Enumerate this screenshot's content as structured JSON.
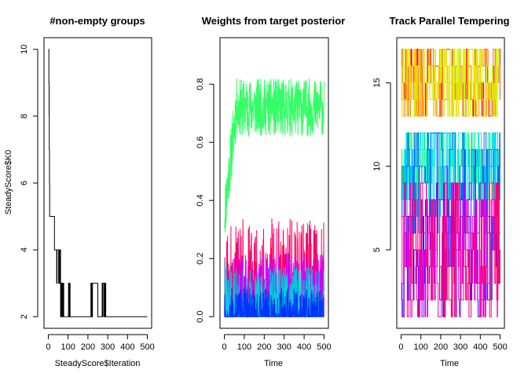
{
  "chart_data": [
    {
      "type": "line",
      "title": "#non-empty groups",
      "xlabel": "SteadyScore$Iteration",
      "ylabel": "SteadyScore$K0",
      "xlim": [
        0,
        500
      ],
      "ylim": [
        2,
        10
      ],
      "xticks": [
        0,
        100,
        200,
        300,
        400,
        500
      ],
      "yticks": [
        2,
        4,
        6,
        8,
        10
      ],
      "series": [
        {
          "color": "#000000",
          "x": [
            1,
            2,
            3,
            4,
            5,
            6,
            7,
            8,
            9,
            10,
            15,
            20,
            25,
            30,
            31,
            33,
            35,
            36,
            38,
            40,
            42,
            44,
            46,
            48,
            50,
            52,
            54,
            56,
            58,
            60,
            62,
            64,
            66,
            68,
            70,
            72,
            74,
            76,
            78,
            80,
            85,
            90,
            100,
            102,
            104,
            106,
            110,
            150,
            200,
            215,
            217,
            219,
            221,
            223,
            250,
            270,
            272,
            274,
            276,
            278,
            280,
            282,
            284,
            286,
            288,
            290,
            300,
            350,
            400,
            450,
            500
          ],
          "y": [
            10,
            10,
            9,
            8,
            7,
            6,
            5,
            5,
            5,
            5,
            5,
            5,
            5,
            5,
            4,
            4,
            4,
            4,
            4,
            4,
            3,
            4,
            4,
            4,
            4,
            3,
            4,
            3,
            4,
            4,
            2,
            3,
            2,
            3,
            2,
            3,
            2,
            3,
            2,
            2,
            2,
            2,
            2,
            3,
            2,
            3,
            2,
            2,
            2,
            3,
            2,
            3,
            2,
            3,
            2,
            2,
            3,
            2,
            3,
            3,
            3,
            2,
            3,
            2,
            3,
            2,
            2,
            2,
            2,
            2,
            2
          ]
        }
      ]
    },
    {
      "type": "line",
      "title": "Weights from target posterior",
      "xlabel": "Time",
      "ylabel": "",
      "xlim": [
        0,
        500
      ],
      "ylim": [
        0,
        0.92
      ],
      "xticks": [
        0,
        100,
        200,
        300,
        400,
        500
      ],
      "yticks": [
        0,
        0.2,
        0.4,
        0.6,
        0.8
      ],
      "ytick_labels": [
        "0.0",
        "0.2",
        "0.4",
        "0.6",
        "0.8"
      ],
      "series": [
        {
          "color": "#33ff66",
          "n": 500,
          "seed": 11,
          "base": 0.72,
          "amp": 0.1,
          "start": 0.35,
          "rise": 60
        },
        {
          "color": "#ff0066",
          "n": 500,
          "seed": 23,
          "base": 0.12,
          "amp": 0.22,
          "start": 0.1,
          "rise": 5
        },
        {
          "color": "#cc00ff",
          "n": 500,
          "seed": 37,
          "base": 0.08,
          "amp": 0.14,
          "start": 0.05,
          "rise": 5
        },
        {
          "color": "#00ccdd",
          "n": 500,
          "seed": 41,
          "base": 0.05,
          "amp": 0.12,
          "start": 0.3,
          "rise": 5
        },
        {
          "color": "#0033ff",
          "n": 500,
          "seed": 53,
          "base": 0.03,
          "amp": 0.07,
          "start": 0.2,
          "rise": 5
        }
      ]
    },
    {
      "type": "line",
      "title": "Track Parallel Tempering",
      "xlabel": "Time",
      "ylabel": "",
      "xlim": [
        0,
        500
      ],
      "ylim": [
        1,
        17
      ],
      "xticks": [
        0,
        100,
        200,
        300,
        400,
        500
      ],
      "yticks": [
        5,
        10,
        15
      ],
      "series": [
        {
          "color": "#ff0000",
          "band": [
            13,
            17
          ],
          "seed": 61
        },
        {
          "color": "#ff6600",
          "band": [
            13,
            17
          ],
          "seed": 62
        },
        {
          "color": "#ffcc00",
          "band": [
            13,
            17
          ],
          "seed": 63
        },
        {
          "color": "#ccff00",
          "band": [
            13,
            17
          ],
          "seed": 64
        },
        {
          "color": "#33ff66",
          "band": [
            8,
            12
          ],
          "seed": 65
        },
        {
          "color": "#00ffcc",
          "band": [
            8,
            12
          ],
          "seed": 66
        },
        {
          "color": "#00ccff",
          "band": [
            7,
            12
          ],
          "seed": 67
        },
        {
          "color": "#0066ff",
          "band": [
            6,
            12
          ],
          "seed": 68
        },
        {
          "color": "#3300ff",
          "band": [
            1,
            9
          ],
          "seed": 69
        },
        {
          "color": "#9900ff",
          "band": [
            1,
            9
          ],
          "seed": 70
        },
        {
          "color": "#ff00cc",
          "band": [
            1,
            9
          ],
          "seed": 71
        },
        {
          "color": "#ff0066",
          "band": [
            1,
            9
          ],
          "seed": 72
        }
      ]
    }
  ]
}
